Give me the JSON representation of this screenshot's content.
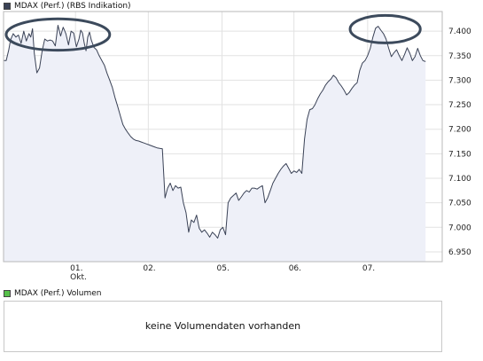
{
  "main_legend": {
    "label": "MDAX (Perf.) (RBS Indikation)",
    "color": "#3a4256"
  },
  "volume_legend": {
    "label": "MDAX (Perf.) Volumen",
    "color": "#56c04a"
  },
  "volume_message": "keine Volumendaten vorhanden",
  "chart_data": {
    "type": "line",
    "series": [
      {
        "name": "MDAX (Perf.) (RBS Indikation)",
        "color": "#3a4256",
        "x": [
          0,
          3,
          6,
          8,
          11,
          14,
          17,
          20,
          23,
          26,
          29,
          31,
          33,
          35,
          38,
          41,
          44,
          47,
          50,
          53,
          56,
          59,
          62,
          65,
          68,
          71,
          74,
          77,
          80,
          83,
          86,
          88,
          90,
          92,
          94,
          96,
          98,
          100,
          103,
          106,
          109,
          112,
          115,
          118,
          121,
          124,
          127,
          130,
          133,
          136,
          139,
          142,
          145,
          148,
          151,
          154,
          157,
          160,
          163,
          166,
          169,
          172,
          175,
          178,
          181,
          184,
          187,
          190,
          193,
          196,
          199,
          202,
          205,
          208,
          211,
          214,
          217,
          220,
          223,
          226,
          229,
          232,
          235,
          238,
          241,
          244,
          247,
          250,
          253,
          256,
          259,
          262,
          265,
          268,
          271,
          274,
          277,
          280,
          283,
          286,
          289,
          292,
          295,
          298,
          301,
          304,
          307,
          310,
          313,
          316,
          319,
          322,
          325,
          328,
          331,
          334,
          337,
          340,
          343,
          346,
          349,
          352,
          355,
          358,
          361,
          364,
          367,
          370,
          373,
          376,
          379,
          382,
          385,
          388,
          391,
          394,
          397,
          400,
          403,
          406,
          409,
          412,
          415,
          418,
          421,
          424,
          427,
          430,
          433,
          436,
          439,
          442,
          445,
          448,
          451,
          454,
          457,
          460,
          463,
          466,
          469,
          472,
          475,
          478,
          481
        ],
        "values": [
          7340,
          7340,
          7362,
          7382,
          7395,
          7388,
          7392,
          7375,
          7400,
          7380,
          7395,
          7388,
          7405,
          7355,
          7315,
          7325,
          7360,
          7384,
          7380,
          7382,
          7380,
          7370,
          7412,
          7390,
          7408,
          7395,
          7372,
          7400,
          7396,
          7368,
          7384,
          7402,
          7396,
          7375,
          7360,
          7388,
          7398,
          7382,
          7367,
          7362,
          7350,
          7340,
          7330,
          7314,
          7300,
          7285,
          7265,
          7247,
          7228,
          7210,
          7200,
          7192,
          7185,
          7180,
          7177,
          7176,
          7174,
          7172,
          7170,
          7168,
          7166,
          7164,
          7162,
          7161,
          7160,
          7060,
          7080,
          7090,
          7075,
          7085,
          7080,
          7082,
          7050,
          7030,
          6990,
          7015,
          7010,
          7025,
          6998,
          6990,
          6995,
          6988,
          6980,
          6990,
          6985,
          6978,
          6995,
          7000,
          6985,
          7050,
          7060,
          7065,
          7070,
          7055,
          7062,
          7070,
          7075,
          7072,
          7080,
          7080,
          7078,
          7082,
          7085,
          7050,
          7060,
          7075,
          7090,
          7100,
          7110,
          7118,
          7125,
          7130,
          7120,
          7110,
          7115,
          7112,
          7118,
          7110,
          7180,
          7220,
          7240,
          7242,
          7250,
          7262,
          7272,
          7280,
          7290,
          7297,
          7302,
          7310,
          7305,
          7295,
          7288,
          7280,
          7270,
          7275,
          7283,
          7290,
          7295,
          7320,
          7335,
          7340,
          7350,
          7365,
          7388,
          7406,
          7410,
          7402,
          7395,
          7384,
          7365,
          7348,
          7356,
          7362,
          7350,
          7340,
          7352,
          7366,
          7355,
          7340,
          7348,
          7365,
          7350,
          7340,
          7338
        ]
      }
    ],
    "x_ticks": [
      {
        "label": "01.",
        "sublabel": "Okt.",
        "x": 82
      },
      {
        "label": "02.",
        "x": 165
      },
      {
        "label": "05.",
        "x": 249
      },
      {
        "label": "06.",
        "x": 331
      },
      {
        "label": "07.",
        "x": 415
      }
    ],
    "y_ticks": [
      6950,
      7000,
      7050,
      7100,
      7150,
      7200,
      7250,
      7300,
      7350,
      7400
    ],
    "y_tick_labels": [
      "6.950",
      "7.000",
      "7.050",
      "7.100",
      "7.150",
      "7.200",
      "7.250",
      "7.300",
      "7.350",
      "7.400"
    ],
    "xlim": [
      0,
      500
    ],
    "ylim": [
      6930,
      7440
    ],
    "grid": true,
    "annotations": [
      {
        "shape": "ellipse",
        "cx": 62,
        "cy": 7393,
        "rx": 59,
        "ry": 32
      },
      {
        "shape": "ellipse",
        "cx": 435,
        "cy": 7404,
        "rx": 40,
        "ry": 28
      }
    ]
  }
}
